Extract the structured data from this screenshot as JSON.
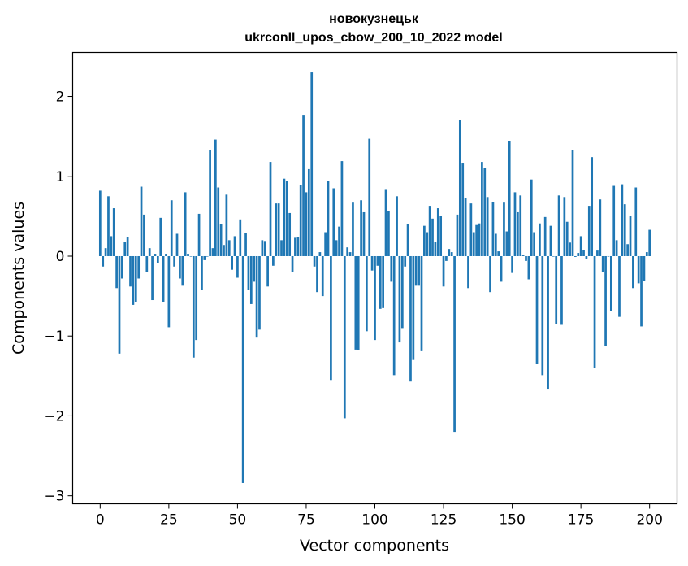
{
  "chart_data": {
    "type": "bar",
    "title": "новокузнецьк",
    "subtitle": "ukrconll_upos_cbow_200_10_2022 model",
    "xlabel": "Vector components",
    "ylabel": "Components values",
    "xlim": [
      -10,
      210
    ],
    "ylim": [
      -3.1,
      2.55
    ],
    "xticks": [
      0,
      25,
      50,
      75,
      100,
      125,
      150,
      175,
      200
    ],
    "yticks": [
      -3,
      -2,
      -1,
      0,
      1,
      2
    ],
    "ytick_labels": [
      "−3",
      "−2",
      "−1",
      "0",
      "1",
      "2"
    ],
    "bar_color": "#1f77b4",
    "values": [
      0.82,
      -0.13,
      0.1,
      0.75,
      0.25,
      0.6,
      -0.4,
      -1.22,
      -0.28,
      0.18,
      0.24,
      -0.38,
      -0.61,
      -0.57,
      -0.28,
      0.87,
      0.52,
      -0.2,
      0.1,
      -0.55,
      0.03,
      -0.09,
      0.48,
      -0.57,
      0.03,
      -0.89,
      0.7,
      -0.13,
      0.28,
      -0.28,
      -0.37,
      0.8,
      0.03,
      0.0,
      -1.27,
      -1.05,
      0.53,
      -0.42,
      -0.05,
      0.0,
      1.33,
      0.1,
      1.46,
      0.86,
      0.4,
      0.14,
      0.77,
      0.2,
      -0.17,
      0.25,
      -0.27,
      0.46,
      -2.84,
      0.29,
      -0.42,
      -0.6,
      -0.32,
      -1.02,
      -0.92,
      0.2,
      0.19,
      -0.38,
      1.18,
      -0.12,
      0.66,
      0.66,
      0.2,
      0.97,
      0.94,
      0.54,
      -0.2,
      0.23,
      0.24,
      0.89,
      1.76,
      0.8,
      1.09,
      2.3,
      -0.13,
      -0.45,
      0.05,
      -0.5,
      0.3,
      0.94,
      -1.55,
      0.85,
      0.2,
      0.37,
      1.19,
      -2.03,
      0.11,
      0.05,
      0.67,
      -1.17,
      -1.18,
      0.7,
      0.55,
      -0.94,
      1.47,
      -0.18,
      -1.05,
      -0.12,
      -0.66,
      -0.65,
      0.83,
      0.56,
      -0.32,
      -1.49,
      0.75,
      -1.08,
      -0.9,
      -0.13,
      0.4,
      -1.57,
      -1.3,
      -0.37,
      -0.37,
      -1.19,
      0.38,
      0.3,
      0.63,
      0.47,
      0.18,
      0.6,
      0.5,
      -0.38,
      -0.06,
      0.09,
      0.05,
      -2.2,
      0.52,
      1.71,
      1.16,
      0.73,
      -0.4,
      0.66,
      0.3,
      0.39,
      0.41,
      1.18,
      1.1,
      0.74,
      -0.45,
      0.68,
      0.28,
      0.06,
      -0.32,
      0.67,
      0.31,
      1.44,
      -0.21,
      0.8,
      0.55,
      0.76,
      0.02,
      -0.06,
      -0.29,
      0.96,
      0.3,
      -1.35,
      0.41,
      -1.49,
      0.49,
      -1.66,
      0.38,
      0.0,
      -0.85,
      0.76,
      -0.86,
      0.74,
      0.43,
      0.17,
      1.33,
      -0.01,
      0.04,
      0.25,
      0.08,
      -0.04,
      0.63,
      1.24,
      -1.4,
      0.07,
      0.71,
      -0.2,
      -1.12,
      0.0,
      -0.69,
      0.88,
      0.2,
      -0.76,
      0.9,
      0.65,
      0.15,
      0.5,
      -0.4,
      0.86,
      -0.34,
      -0.88,
      -0.31,
      0.05,
      0.33
    ]
  }
}
